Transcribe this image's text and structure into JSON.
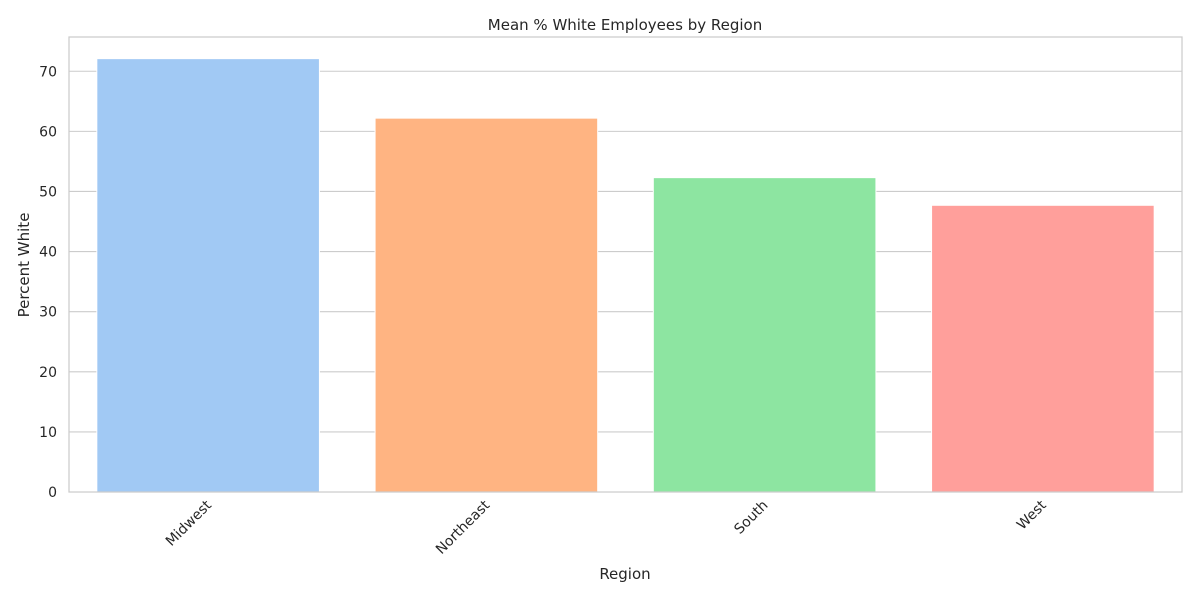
{
  "chart_data": {
    "type": "bar",
    "title": "Mean % White Employees by Region",
    "xlabel": "Region",
    "ylabel": "Percent White",
    "categories": [
      "Midwest",
      "Northeast",
      "South",
      "West"
    ],
    "values": [
      72.1,
      62.2,
      52.3,
      47.7
    ],
    "colors": [
      "#a1c9f4",
      "#ffb482",
      "#8de5a1",
      "#ff9f9b"
    ],
    "ylim": [
      0,
      75.7
    ],
    "yticks": [
      0,
      10,
      20,
      30,
      40,
      50,
      60,
      70
    ],
    "grid": true,
    "legend": "none"
  }
}
